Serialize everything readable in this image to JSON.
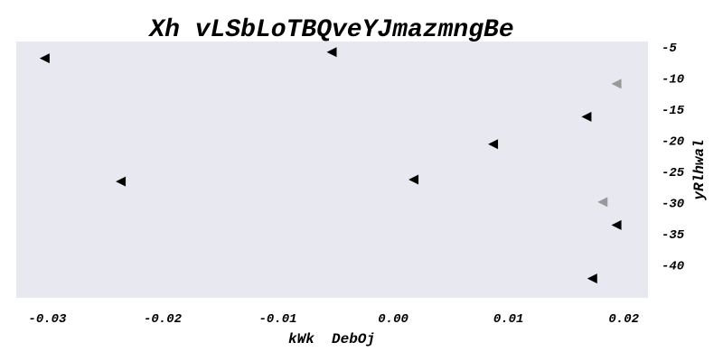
{
  "chart_data": {
    "type": "scatter",
    "title": "Xh vLSbLoTBQveYJmazmngBe",
    "xlabel": "kWk  DebOj",
    "ylabel": "yRlhwal",
    "xlim": [
      -0.0327,
      0.0221
    ],
    "ylim": [
      -45.3,
      -4.1
    ],
    "x_ticks": [
      "-0.03",
      "-0.02",
      "-0.01",
      "0.00",
      "0.01",
      "0.02"
    ],
    "y_ticks": [
      "-5",
      "-10",
      "-15",
      "-20",
      "-25",
      "-30",
      "-35",
      "-40"
    ],
    "y_axis_side": "right",
    "grid": false,
    "marker": "triangle-left",
    "colors": {
      "background": "#e8e8f0",
      "marker": "#000000",
      "marker_faded": "#999999"
    },
    "series": [
      {
        "color": "#000000",
        "points": [
          {
            "x": -0.0302,
            "y": -6.8
          },
          {
            "x": -0.0053,
            "y": -5.8
          },
          {
            "x": 0.0168,
            "y": -16.2
          },
          {
            "x": 0.0087,
            "y": -20.6
          },
          {
            "x": -0.0236,
            "y": -26.6
          },
          {
            "x": 0.0018,
            "y": -26.3
          },
          {
            "x": 0.0194,
            "y": -33.6
          },
          {
            "x": 0.0173,
            "y": -42.2
          }
        ]
      },
      {
        "color": "#999999",
        "points": [
          {
            "x": 0.0194,
            "y": -10.9
          },
          {
            "x": 0.0182,
            "y": -29.9
          }
        ]
      }
    ]
  }
}
